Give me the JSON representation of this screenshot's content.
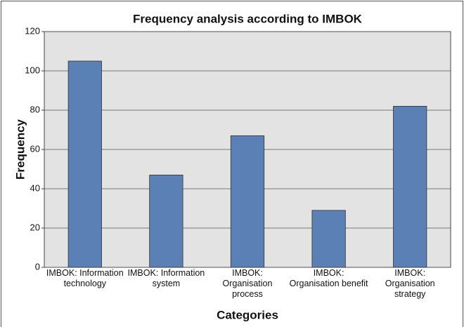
{
  "chart_data": {
    "type": "bar",
    "title": "Frequency analysis according to IMBOK",
    "x_label": "Categories",
    "y_label": "Frequency",
    "categories": [
      "IMBOK: Information technology",
      "IMBOK: Information system",
      "IMBOK: Organisation process",
      "IMBOK: Organisation benefit",
      "IMBOK: Organisation strategy"
    ],
    "values": [
      105,
      47,
      67,
      29,
      82
    ],
    "color": "#5b80b6",
    "ylim": [
      0,
      120
    ],
    "yticks": [
      0,
      20,
      40,
      60,
      80,
      100,
      120
    ],
    "grid": true
  }
}
